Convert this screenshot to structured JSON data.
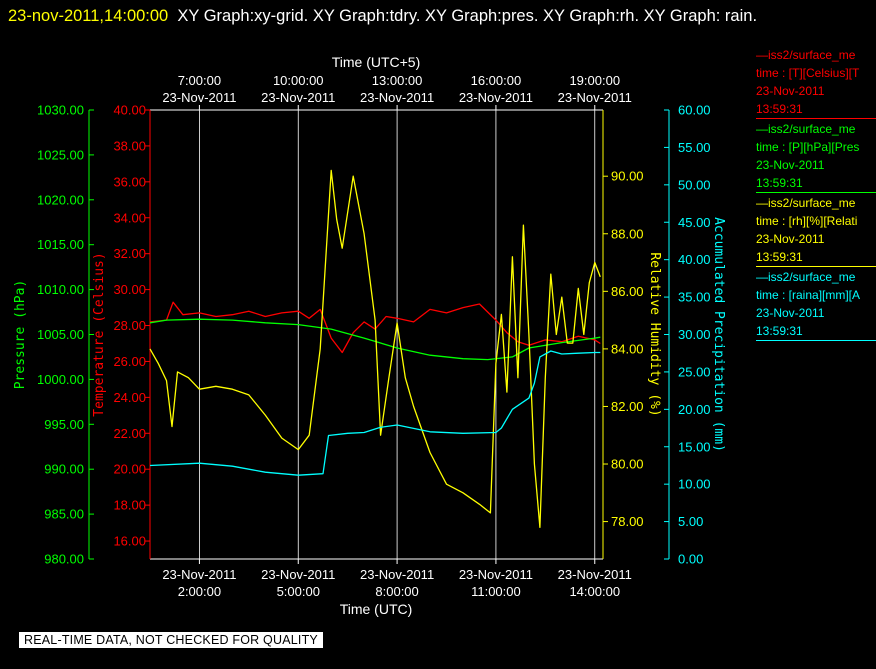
{
  "header": {
    "timestamp": "23-nov-2011,14:00:00",
    "graph_list": "XY Graph:xy-grid.  XY Graph:tdry.  XY Graph:pres.  XY Graph:rh.  XY Graph: rain."
  },
  "footer": {
    "notice": "REAL-TIME DATA, NOT CHECKED FOR QUALITY"
  },
  "legend": [
    {
      "color": "#ff0000",
      "lines": [
        "—iss2/surface_me",
        "time : [T][Celsius][T",
        "23-Nov-2011",
        "13:59:31"
      ]
    },
    {
      "color": "#00ff00",
      "lines": [
        "—iss2/surface_me",
        "time : [P][hPa][Pres",
        "23-Nov-2011",
        "13:59:31"
      ]
    },
    {
      "color": "#ffff00",
      "lines": [
        "—iss2/surface_me",
        "time : [rh][%][Relati",
        "23-Nov-2011",
        "13:59:31"
      ]
    },
    {
      "color": "#00ffff",
      "lines": [
        "—iss2/surface_me",
        "time : [raina][mm][A",
        "23-Nov-2011",
        "13:59:31"
      ]
    }
  ],
  "chart_data": {
    "type": "line",
    "x_label_bottom": "Time (UTC)",
    "x_label_top": "Time (UTC+5)",
    "x_range": [
      "2011-11-23 00:30",
      "2011-11-23 14:15"
    ],
    "x_ticks_bottom": [
      {
        "date": "23-Nov-2011",
        "time": "2:00:00",
        "t": "2011-11-23 02:00"
      },
      {
        "date": "23-Nov-2011",
        "time": "5:00:00",
        "t": "2011-11-23 05:00"
      },
      {
        "date": "23-Nov-2011",
        "time": "8:00:00",
        "t": "2011-11-23 08:00"
      },
      {
        "date": "23-Nov-2011",
        "time": "11:00:00",
        "t": "2011-11-23 11:00"
      },
      {
        "date": "23-Nov-2011",
        "time": "14:00:00",
        "t": "2011-11-23 14:00"
      }
    ],
    "x_ticks_top": [
      {
        "time": "7:00:00",
        "date": "23-Nov-2011",
        "t": "2011-11-23 02:00"
      },
      {
        "time": "10:00:00",
        "date": "23-Nov-2011",
        "t": "2011-11-23 05:00"
      },
      {
        "time": "13:00:00",
        "date": "23-Nov-2011",
        "t": "2011-11-23 08:00"
      },
      {
        "time": "16:00:00",
        "date": "23-Nov-2011",
        "t": "2011-11-23 11:00"
      },
      {
        "time": "19:00:00",
        "date": "23-Nov-2011",
        "t": "2011-11-23 14:00"
      }
    ],
    "vertical_grid": true,
    "axes": [
      {
        "id": "pres",
        "label": "Pressure (hPa)",
        "color": "#00ff00",
        "min": 980,
        "max": 1030,
        "ticks": [
          "1030.00",
          "1025.00",
          "1020.00",
          "1015.00",
          "1010.00",
          "1005.00",
          "1000.00",
          "995.00",
          "990.00",
          "985.00",
          "980.00"
        ]
      },
      {
        "id": "tdry",
        "label": "Temperature (Celsius)",
        "color": "#ff0000",
        "min": 15,
        "max": 40,
        "ticks": [
          "40.00",
          "38.00",
          "36.00",
          "34.00",
          "32.00",
          "30.00",
          "28.00",
          "26.00",
          "24.00",
          "22.00",
          "20.00",
          "18.00",
          "16.00"
        ]
      },
      {
        "id": "rh",
        "label": "Relative Humidity (%)",
        "color": "#ffff00",
        "min": 76.7,
        "max": 92.3,
        "ticks": [
          "90.00",
          "88.00",
          "86.00",
          "84.00",
          "82.00",
          "80.00",
          "78.00"
        ]
      },
      {
        "id": "rain",
        "label": "Accumulated Precipitation (mm)",
        "color": "#00ffff",
        "min": 0,
        "max": 60,
        "ticks": [
          "60.00",
          "55.00",
          "50.00",
          "45.00",
          "40.00",
          "35.00",
          "30.00",
          "25.00",
          "20.00",
          "15.00",
          "10.00",
          "5.00",
          "0.00"
        ]
      }
    ],
    "series": [
      {
        "axis": "tdry",
        "color": "#ff0000",
        "points": [
          [
            "2011-11-23 00:30",
            28.2
          ],
          [
            "2011-11-23 01:00",
            28.3
          ],
          [
            "2011-11-23 01:12",
            29.3
          ],
          [
            "2011-11-23 01:30",
            28.6
          ],
          [
            "2011-11-23 02:00",
            28.7
          ],
          [
            "2011-11-23 02:30",
            28.5
          ],
          [
            "2011-11-23 03:00",
            28.6
          ],
          [
            "2011-11-23 03:30",
            28.8
          ],
          [
            "2011-11-23 04:00",
            28.5
          ],
          [
            "2011-11-23 04:30",
            28.7
          ],
          [
            "2011-11-23 05:00",
            28.8
          ],
          [
            "2011-11-23 05:20",
            28.4
          ],
          [
            "2011-11-23 05:40",
            28.9
          ],
          [
            "2011-11-23 06:00",
            27.3
          ],
          [
            "2011-11-23 06:20",
            26.5
          ],
          [
            "2011-11-23 06:40",
            27.6
          ],
          [
            "2011-11-23 07:00",
            28.2
          ],
          [
            "2011-11-23 07:20",
            27.8
          ],
          [
            "2011-11-23 07:40",
            28.5
          ],
          [
            "2011-11-23 08:00",
            28.4
          ],
          [
            "2011-11-23 08:30",
            28.2
          ],
          [
            "2011-11-23 09:00",
            28.9
          ],
          [
            "2011-11-23 09:30",
            28.7
          ],
          [
            "2011-11-23 10:00",
            29.0
          ],
          [
            "2011-11-23 10:30",
            29.2
          ],
          [
            "2011-11-23 11:00",
            28.3
          ],
          [
            "2011-11-23 11:20",
            27.6
          ],
          [
            "2011-11-23 11:40",
            27.1
          ],
          [
            "2011-11-23 12:00",
            26.9
          ],
          [
            "2011-11-23 12:30",
            27.2
          ],
          [
            "2011-11-23 13:00",
            27.1
          ],
          [
            "2011-11-23 13:30",
            27.4
          ],
          [
            "2011-11-23 14:00",
            27.2
          ],
          [
            "2011-11-23 14:10",
            27.0
          ]
        ]
      },
      {
        "axis": "pres",
        "color": "#00ff00",
        "points": [
          [
            "2011-11-23 00:30",
            1006.3
          ],
          [
            "2011-11-23 01:00",
            1006.6
          ],
          [
            "2011-11-23 02:00",
            1006.7
          ],
          [
            "2011-11-23 03:00",
            1006.6
          ],
          [
            "2011-11-23 04:00",
            1006.3
          ],
          [
            "2011-11-23 05:00",
            1006.1
          ],
          [
            "2011-11-23 06:00",
            1005.6
          ],
          [
            "2011-11-23 07:00",
            1004.6
          ],
          [
            "2011-11-23 08:00",
            1003.5
          ],
          [
            "2011-11-23 09:00",
            1002.7
          ],
          [
            "2011-11-23 10:00",
            1002.3
          ],
          [
            "2011-11-23 10:45",
            1002.2
          ],
          [
            "2011-11-23 11:30",
            1002.5
          ],
          [
            "2011-11-23 12:00",
            1003.5
          ],
          [
            "2011-11-23 13:00",
            1004.1
          ],
          [
            "2011-11-23 14:00",
            1004.6
          ],
          [
            "2011-11-23 14:10",
            1004.7
          ]
        ]
      },
      {
        "axis": "rh",
        "color": "#ffff00",
        "points": [
          [
            "2011-11-23 00:30",
            84.0
          ],
          [
            "2011-11-23 00:45",
            83.5
          ],
          [
            "2011-11-23 01:00",
            82.9
          ],
          [
            "2011-11-23 01:10",
            81.3
          ],
          [
            "2011-11-23 01:20",
            83.2
          ],
          [
            "2011-11-23 01:40",
            83.0
          ],
          [
            "2011-11-23 02:00",
            82.6
          ],
          [
            "2011-11-23 02:30",
            82.7
          ],
          [
            "2011-11-23 03:00",
            82.6
          ],
          [
            "2011-11-23 03:30",
            82.4
          ],
          [
            "2011-11-23 04:00",
            81.7
          ],
          [
            "2011-11-23 04:30",
            80.9
          ],
          [
            "2011-11-23 05:00",
            80.5
          ],
          [
            "2011-11-23 05:20",
            81.0
          ],
          [
            "2011-11-23 05:40",
            84.0
          ],
          [
            "2011-11-23 06:00",
            90.2
          ],
          [
            "2011-11-23 06:10",
            88.5
          ],
          [
            "2011-11-23 06:20",
            87.5
          ],
          [
            "2011-11-23 06:40",
            90.0
          ],
          [
            "2011-11-23 07:00",
            88.0
          ],
          [
            "2011-11-23 07:20",
            85.0
          ],
          [
            "2011-11-23 07:30",
            81.0
          ],
          [
            "2011-11-23 07:45",
            83.0
          ],
          [
            "2011-11-23 08:00",
            84.9
          ],
          [
            "2011-11-23 08:15",
            83.0
          ],
          [
            "2011-11-23 08:30",
            82.0
          ],
          [
            "2011-11-23 08:45",
            81.2
          ],
          [
            "2011-11-23 09:00",
            80.4
          ],
          [
            "2011-11-23 09:30",
            79.3
          ],
          [
            "2011-11-23 10:00",
            79.0
          ],
          [
            "2011-11-23 10:30",
            78.6
          ],
          [
            "2011-11-23 10:50",
            78.3
          ],
          [
            "2011-11-23 11:00",
            83.5
          ],
          [
            "2011-11-23 11:10",
            85.2
          ],
          [
            "2011-11-23 11:20",
            82.5
          ],
          [
            "2011-11-23 11:30",
            87.2
          ],
          [
            "2011-11-23 11:40",
            83.0
          ],
          [
            "2011-11-23 11:50",
            88.3
          ],
          [
            "2011-11-23 12:00",
            84.5
          ],
          [
            "2011-11-23 12:10",
            80.0
          ],
          [
            "2011-11-23 12:20",
            77.8
          ],
          [
            "2011-11-23 12:30",
            83.0
          ],
          [
            "2011-11-23 12:40",
            86.6
          ],
          [
            "2011-11-23 12:50",
            84.5
          ],
          [
            "2011-11-23 13:00",
            85.8
          ],
          [
            "2011-11-23 13:10",
            84.2
          ],
          [
            "2011-11-23 13:20",
            84.2
          ],
          [
            "2011-11-23 13:30",
            86.1
          ],
          [
            "2011-11-23 13:40",
            84.5
          ],
          [
            "2011-11-23 13:50",
            86.3
          ],
          [
            "2011-11-23 14:00",
            87.0
          ],
          [
            "2011-11-23 14:10",
            86.5
          ]
        ]
      },
      {
        "axis": "rain",
        "color": "#00ffff",
        "points": [
          [
            "2011-11-23 00:30",
            12.5
          ],
          [
            "2011-11-23 02:00",
            12.8
          ],
          [
            "2011-11-23 03:00",
            12.4
          ],
          [
            "2011-11-23 04:00",
            11.6
          ],
          [
            "2011-11-23 05:00",
            11.2
          ],
          [
            "2011-11-23 05:45",
            11.4
          ],
          [
            "2011-11-23 05:55",
            16.5
          ],
          [
            "2011-11-23 06:30",
            16.8
          ],
          [
            "2011-11-23 07:00",
            16.9
          ],
          [
            "2011-11-23 07:30",
            17.6
          ],
          [
            "2011-11-23 08:00",
            17.9
          ],
          [
            "2011-11-23 09:00",
            17.0
          ],
          [
            "2011-11-23 10:00",
            16.8
          ],
          [
            "2011-11-23 11:00",
            16.9
          ],
          [
            "2011-11-23 11:10",
            17.5
          ],
          [
            "2011-11-23 11:30",
            20.0
          ],
          [
            "2011-11-23 12:00",
            21.5
          ],
          [
            "2011-11-23 12:10",
            23.5
          ],
          [
            "2011-11-23 12:20",
            27.0
          ],
          [
            "2011-11-23 12:40",
            27.8
          ],
          [
            "2011-11-23 13:00",
            27.4
          ],
          [
            "2011-11-23 13:30",
            27.5
          ],
          [
            "2011-11-23 14:00",
            27.6
          ],
          [
            "2011-11-23 14:10",
            27.6
          ]
        ]
      }
    ]
  }
}
